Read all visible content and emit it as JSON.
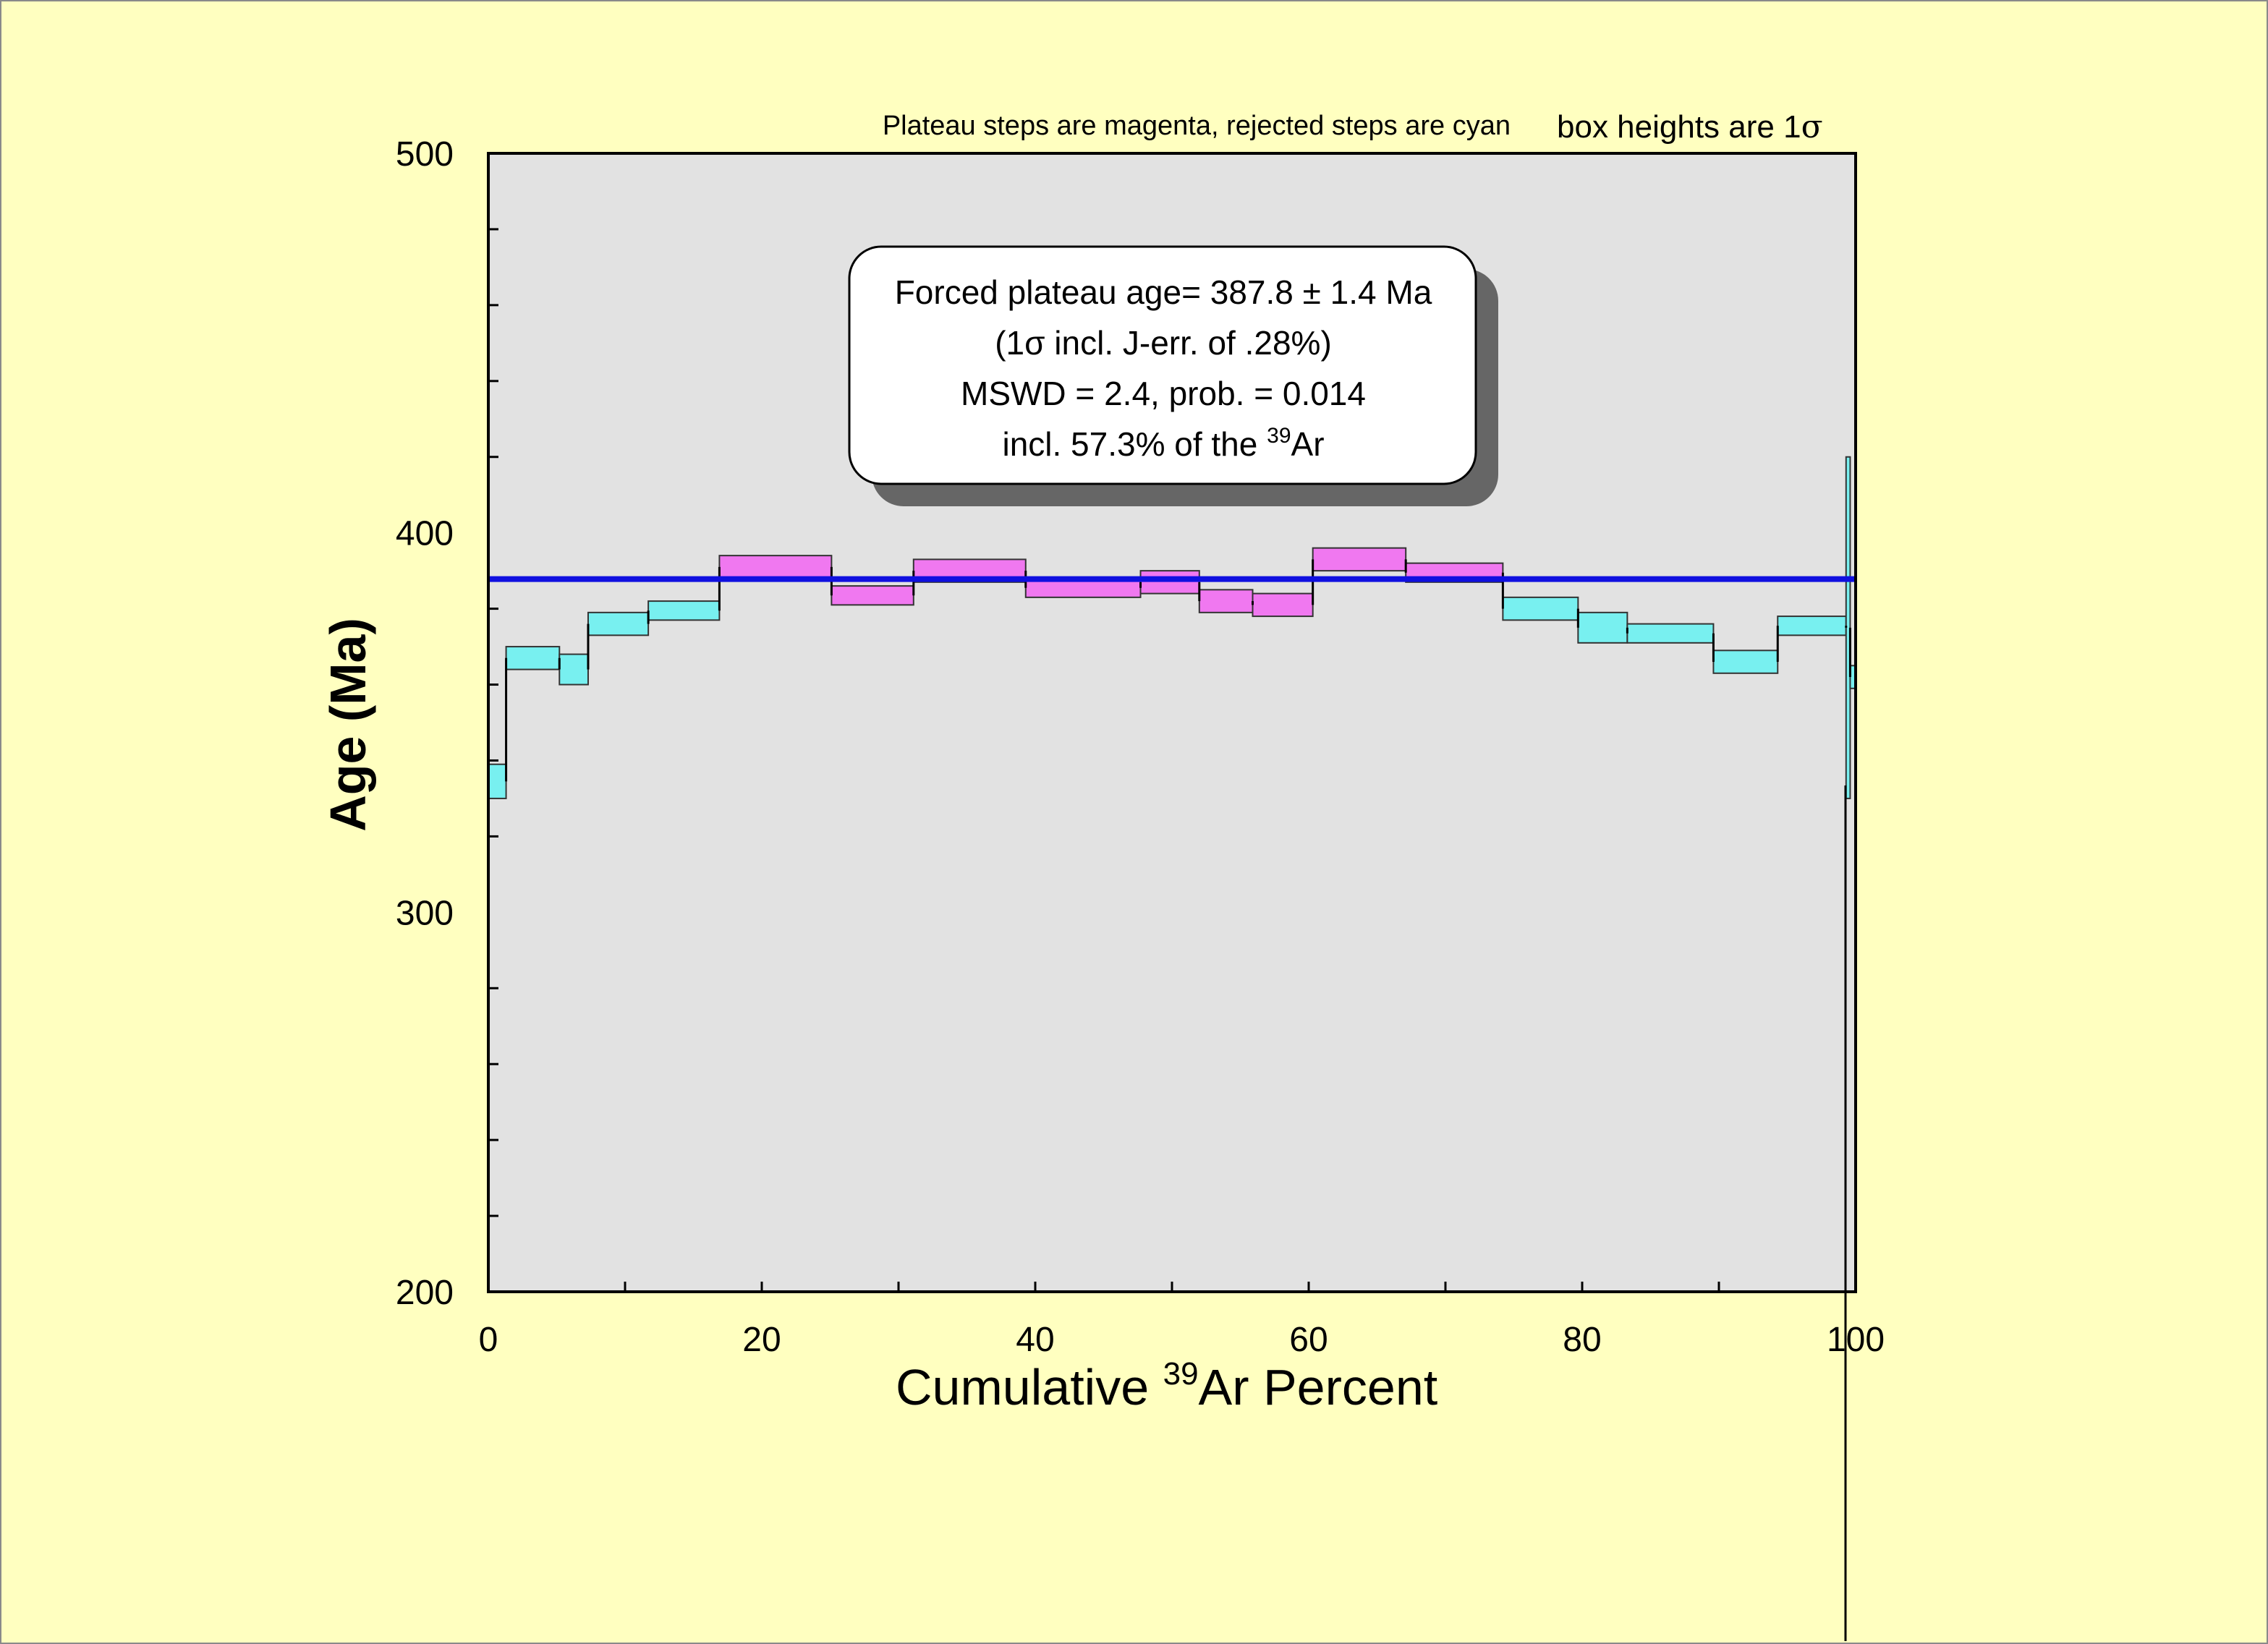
{
  "chart_data": {
    "type": "bar",
    "subtype": "step-heating age spectrum",
    "xlabel": "Cumulative ",
    "xlabel_sup": "39",
    "xlabel_end": "Ar Percent",
    "ylabel": "Age (Ma)",
    "xlim": [
      0,
      100
    ],
    "ylim": [
      200,
      500
    ],
    "x_ticks": [
      "0",
      "20",
      "40",
      "60",
      "80",
      "100"
    ],
    "y_ticks": [
      "200",
      "300",
      "400",
      "500"
    ],
    "x_tick_values": [
      0,
      20,
      40,
      60,
      80,
      100
    ],
    "y_tick_values": [
      200,
      300,
      400,
      500
    ],
    "note_left": "Plateau steps are magenta, rejected steps are cyan",
    "note_right": "box heights are 1",
    "note_right_sigma": "σ",
    "plateau_age": 387.8,
    "result_box": {
      "line1": "Forced plateau age= 387.8 ± 1.4 Ma",
      "line2": "(1σ incl. J-err. of .28%)",
      "line3": "MSWD = 2.4, prob. = 0.014",
      "line4_pre": "incl. 57.3% of the ",
      "line4_sup": "39",
      "line4_post": "Ar"
    },
    "colors": {
      "plateau": "#f078f0",
      "rejected": "#78f0f0",
      "plateau_line": "#1010e0",
      "plot_bg": "#e2e2e2",
      "page_bg": "#ffffc0"
    },
    "steps": [
      {
        "x0": 0.0,
        "x1": 1.3,
        "age_low": 330,
        "age_high": 339,
        "plateau": false
      },
      {
        "x0": 1.3,
        "x1": 5.2,
        "age_low": 364,
        "age_high": 370,
        "plateau": false
      },
      {
        "x0": 5.2,
        "x1": 7.3,
        "age_low": 360,
        "age_high": 368,
        "plateau": false
      },
      {
        "x0": 7.3,
        "x1": 11.7,
        "age_low": 373,
        "age_high": 379,
        "plateau": false
      },
      {
        "x0": 11.7,
        "x1": 16.9,
        "age_low": 377,
        "age_high": 382,
        "plateau": false
      },
      {
        "x0": 16.9,
        "x1": 25.1,
        "age_low": 388,
        "age_high": 394,
        "plateau": true
      },
      {
        "x0": 25.1,
        "x1": 31.1,
        "age_low": 381,
        "age_high": 386,
        "plateau": true
      },
      {
        "x0": 31.1,
        "x1": 39.3,
        "age_low": 387,
        "age_high": 393,
        "plateau": true
      },
      {
        "x0": 39.3,
        "x1": 47.7,
        "age_low": 383,
        "age_high": 388,
        "plateau": true
      },
      {
        "x0": 47.7,
        "x1": 52.0,
        "age_low": 384,
        "age_high": 390,
        "plateau": true
      },
      {
        "x0": 52.0,
        "x1": 55.9,
        "age_low": 379,
        "age_high": 385,
        "plateau": true
      },
      {
        "x0": 55.9,
        "x1": 60.3,
        "age_low": 378,
        "age_high": 384,
        "plateau": true
      },
      {
        "x0": 60.3,
        "x1": 67.1,
        "age_low": 390,
        "age_high": 396,
        "plateau": true
      },
      {
        "x0": 67.1,
        "x1": 74.2,
        "age_low": 387,
        "age_high": 392,
        "plateau": true
      },
      {
        "x0": 74.2,
        "x1": 79.7,
        "age_low": 377,
        "age_high": 383,
        "plateau": false
      },
      {
        "x0": 79.7,
        "x1": 83.3,
        "age_low": 371,
        "age_high": 379,
        "plateau": false
      },
      {
        "x0": 83.3,
        "x1": 89.6,
        "age_low": 371,
        "age_high": 376,
        "plateau": false
      },
      {
        "x0": 89.6,
        "x1": 94.3,
        "age_low": 363,
        "age_high": 369,
        "plateau": false
      },
      {
        "x0": 94.3,
        "x1": 99.3,
        "age_low": 373,
        "age_high": 378,
        "plateau": false
      },
      {
        "x0": 99.3,
        "x1": 99.6,
        "age_low": 330,
        "age_high": 420,
        "plateau": false
      },
      {
        "x0": 99.6,
        "x1": 100,
        "age_low": 359,
        "age_high": 365,
        "plateau": false
      }
    ]
  }
}
